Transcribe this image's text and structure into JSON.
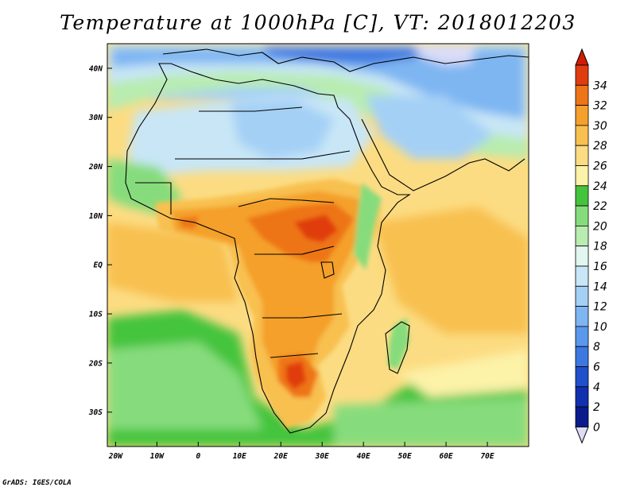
{
  "title": "Temperature at 1000hPa [C], VT: 2018012203",
  "credit": "GrADS: IGES/COLA",
  "map": {
    "lon_range": [
      -22,
      80
    ],
    "lat_range": [
      -37,
      45
    ],
    "lon_ticks": [
      {
        "value": -20,
        "label": "20W"
      },
      {
        "value": -10,
        "label": "10W"
      },
      {
        "value": 0,
        "label": "0"
      },
      {
        "value": 10,
        "label": "10E"
      },
      {
        "value": 20,
        "label": "20E"
      },
      {
        "value": 30,
        "label": "30E"
      },
      {
        "value": 40,
        "label": "40E"
      },
      {
        "value": 50,
        "label": "50E"
      },
      {
        "value": 60,
        "label": "60E"
      },
      {
        "value": 70,
        "label": "70E"
      }
    ],
    "lat_ticks": [
      {
        "value": 40,
        "label": "40N"
      },
      {
        "value": 30,
        "label": "30N"
      },
      {
        "value": 20,
        "label": "20N"
      },
      {
        "value": 10,
        "label": "10N"
      },
      {
        "value": 0,
        "label": "EQ"
      },
      {
        "value": -10,
        "label": "10S"
      },
      {
        "value": -20,
        "label": "20S"
      },
      {
        "value": -30,
        "label": "30S"
      }
    ]
  },
  "colorbar": {
    "levels": [
      "0",
      "2",
      "4",
      "6",
      "8",
      "10",
      "12",
      "14",
      "16",
      "18",
      "20",
      "22",
      "24",
      "26",
      "28",
      "30",
      "32",
      "34"
    ],
    "colors": [
      "#0a1a8c",
      "#1030b0",
      "#2050cc",
      "#3c78e0",
      "#5a98ec",
      "#7eb6f2",
      "#a4d0f6",
      "#c8e6f6",
      "#e2f6f0",
      "#b8ecb0",
      "#86dc7c",
      "#44c43c",
      "#fcf2a8",
      "#fcdc82",
      "#f8c050",
      "#f4a02c",
      "#ee7418",
      "#e03c10",
      "#d01c08"
    ],
    "below_color": "#dcdcf8"
  }
}
